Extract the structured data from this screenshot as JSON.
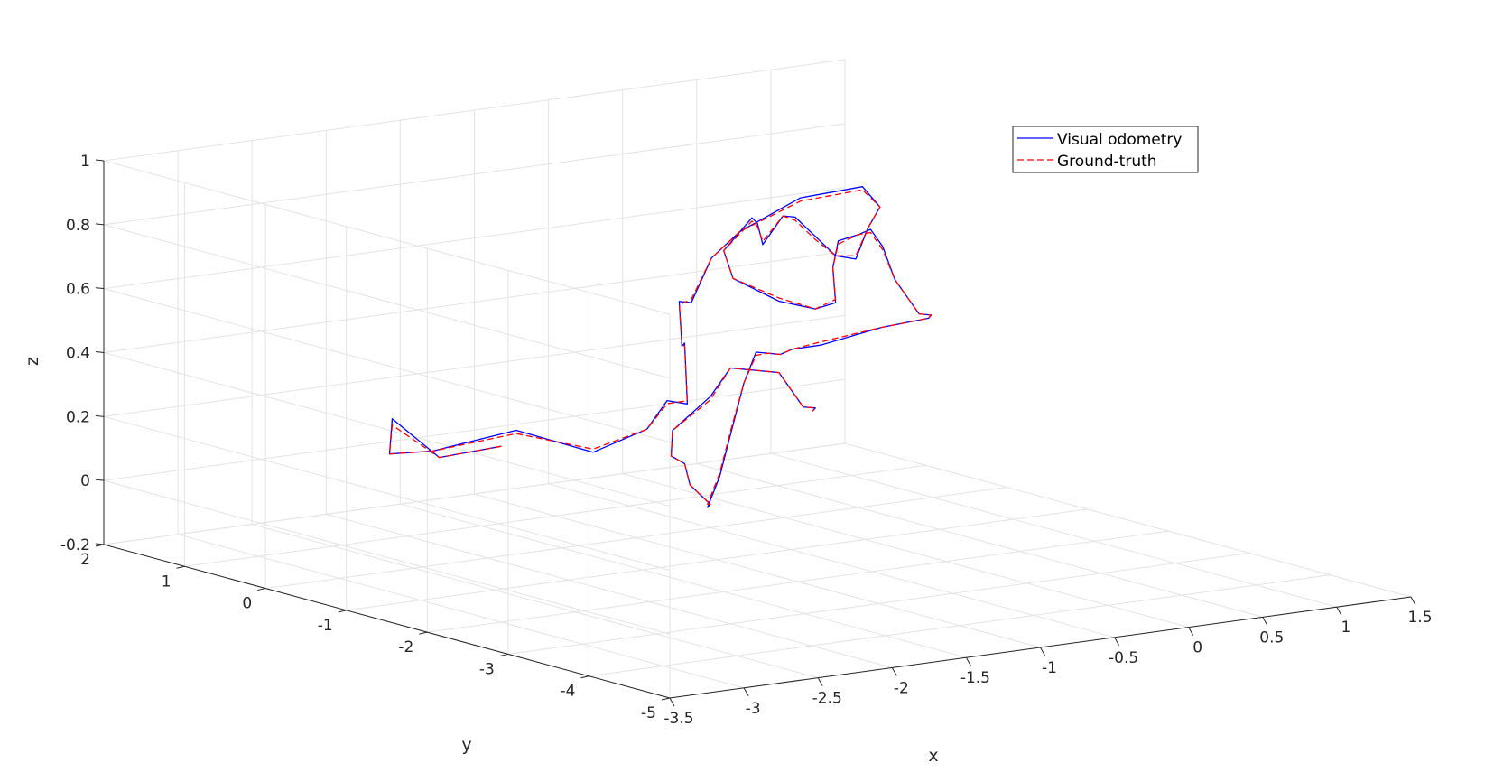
{
  "chart_data": {
    "type": "line",
    "projection": "3d",
    "title": "",
    "xlabel": "x",
    "ylabel": "y",
    "zlabel": "z",
    "xlim": [
      -3.5,
      1.5
    ],
    "ylim": [
      -5,
      2
    ],
    "zlim": [
      -0.2,
      1
    ],
    "xticks": [
      "-3.5",
      "-3",
      "-2.5",
      "-2",
      "-1.5",
      "-1",
      "-0.5",
      "0",
      "0.5",
      "1",
      "1.5"
    ],
    "yticks": [
      "-5",
      "-4",
      "-3",
      "-2",
      "-1",
      "0",
      "1",
      "2"
    ],
    "zticks": [
      "-0.2",
      "0",
      "0.2",
      "0.4",
      "0.6",
      "0.8",
      "1"
    ],
    "grid": true,
    "legend_position": "top-right",
    "series": [
      {
        "name": "Visual odometry",
        "color": "#0000ff",
        "style": "solid",
        "points": [
          [
            -3.0,
            -2.0,
            0.35
          ],
          [
            -3.2,
            -1.6,
            0.3
          ],
          [
            -3.3,
            -1.2,
            0.4
          ],
          [
            -3.1,
            -0.8,
            0.25
          ],
          [
            -2.7,
            -0.6,
            0.22
          ],
          [
            -2.3,
            -0.9,
            0.28
          ],
          [
            -2.0,
            -1.3,
            0.22
          ],
          [
            -1.8,
            -1.6,
            0.3
          ],
          [
            -1.5,
            -1.3,
            0.35
          ],
          [
            -1.2,
            -1.0,
            0.3
          ],
          [
            -1.0,
            -0.6,
            0.45
          ],
          [
            -0.8,
            -0.2,
            0.4
          ],
          [
            -0.6,
            0.2,
            0.5
          ],
          [
            -0.3,
            0.6,
            0.45
          ],
          [
            0.0,
            0.9,
            0.55
          ],
          [
            0.3,
            1.1,
            0.6
          ],
          [
            0.6,
            0.9,
            0.7
          ],
          [
            0.8,
            0.5,
            0.75
          ],
          [
            0.7,
            0.1,
            0.72
          ],
          [
            0.4,
            -0.3,
            0.7
          ],
          [
            0.1,
            -0.7,
            0.65
          ],
          [
            -0.2,
            -1.0,
            0.7
          ],
          [
            -0.5,
            -1.3,
            0.8
          ],
          [
            -0.8,
            -1.6,
            0.9
          ],
          [
            -1.1,
            -2.0,
            0.95
          ],
          [
            -1.4,
            -2.3,
            0.9
          ],
          [
            -1.6,
            -2.6,
            1.0
          ],
          [
            -1.8,
            -2.9,
            1.05
          ],
          [
            -2.1,
            -3.1,
            0.98
          ],
          [
            -2.2,
            -3.4,
            0.92
          ],
          [
            -2.0,
            -3.6,
            0.85
          ],
          [
            -1.7,
            -3.5,
            0.8
          ],
          [
            -1.4,
            -3.2,
            0.78
          ],
          [
            -1.2,
            -2.8,
            0.85
          ],
          [
            -1.0,
            -2.5,
            0.9
          ],
          [
            -0.7,
            -2.2,
            0.88
          ],
          [
            -0.4,
            -1.8,
            0.85
          ],
          [
            -0.1,
            -1.4,
            0.75
          ],
          [
            0.2,
            -1.0,
            0.6
          ],
          [
            0.5,
            -0.6,
            0.5
          ],
          [
            0.8,
            -0.2,
            0.4
          ],
          [
            1.1,
            0.2,
            0.35
          ],
          [
            1.3,
            0.6,
            0.3
          ],
          [
            1.2,
            1.0,
            0.25
          ],
          [
            0.9,
            1.2,
            0.2
          ],
          [
            0.6,
            1.0,
            0.22
          ],
          [
            0.3,
            0.6,
            0.25
          ],
          [
            0.0,
            0.2,
            0.3
          ],
          [
            -0.3,
            -0.2,
            0.35
          ],
          [
            -0.6,
            -0.6,
            0.3
          ],
          [
            -0.9,
            -1.0,
            0.2
          ],
          [
            -1.2,
            -1.4,
            0.1
          ],
          [
            -1.5,
            -1.8,
            0.05
          ],
          [
            -1.7,
            -2.2,
            0.1
          ],
          [
            -2.0,
            -2.5,
            0.2
          ],
          [
            -2.2,
            -2.8,
            0.3
          ],
          [
            -2.4,
            -3.0,
            0.35
          ],
          [
            -2.5,
            -3.2,
            0.45
          ],
          [
            -2.3,
            -3.3,
            0.55
          ],
          [
            -2.0,
            -3.0,
            0.6
          ],
          [
            -1.7,
            -2.6,
            0.55
          ],
          [
            -1.4,
            -2.2,
            0.5
          ],
          [
            -1.1,
            -1.8,
            0.45
          ],
          [
            -0.8,
            -1.4,
            0.4
          ],
          [
            -0.5,
            -1.0,
            0.3
          ],
          [
            -0.2,
            -0.6,
            0.2
          ],
          [
            0.1,
            -0.2,
            0.15
          ],
          [
            0.3,
            0.2,
            0.1
          ]
        ]
      },
      {
        "name": "Ground-truth",
        "color": "#ff0000",
        "style": "dashed",
        "points": [
          [
            -3.0,
            -2.0,
            0.35
          ],
          [
            -3.2,
            -1.6,
            0.3
          ],
          [
            -3.3,
            -1.2,
            0.38
          ],
          [
            -3.1,
            -0.8,
            0.25
          ],
          [
            -2.7,
            -0.6,
            0.22
          ],
          [
            -2.3,
            -0.9,
            0.27
          ],
          [
            -2.0,
            -1.3,
            0.23
          ],
          [
            -1.8,
            -1.6,
            0.3
          ],
          [
            -1.5,
            -1.3,
            0.34
          ],
          [
            -1.2,
            -1.0,
            0.31
          ],
          [
            -1.0,
            -0.6,
            0.44
          ],
          [
            -0.8,
            -0.2,
            0.41
          ],
          [
            -0.6,
            0.2,
            0.49
          ],
          [
            -0.3,
            0.6,
            0.46
          ],
          [
            0.0,
            0.9,
            0.55
          ],
          [
            0.3,
            1.1,
            0.6
          ],
          [
            0.6,
            0.9,
            0.69
          ],
          [
            0.8,
            0.5,
            0.74
          ],
          [
            0.7,
            0.1,
            0.72
          ],
          [
            0.4,
            -0.3,
            0.7
          ],
          [
            0.1,
            -0.7,
            0.66
          ],
          [
            -0.2,
            -1.0,
            0.7
          ],
          [
            -0.5,
            -1.3,
            0.79
          ],
          [
            -0.8,
            -1.6,
            0.89
          ],
          [
            -1.1,
            -2.0,
            0.95
          ],
          [
            -1.4,
            -2.3,
            0.91
          ],
          [
            -1.6,
            -2.6,
            0.99
          ],
          [
            -1.8,
            -2.9,
            1.04
          ],
          [
            -2.1,
            -3.1,
            0.98
          ],
          [
            -2.2,
            -3.4,
            0.92
          ],
          [
            -2.0,
            -3.6,
            0.86
          ],
          [
            -1.7,
            -3.5,
            0.8
          ],
          [
            -1.4,
            -3.2,
            0.79
          ],
          [
            -1.2,
            -2.8,
            0.85
          ],
          [
            -1.0,
            -2.5,
            0.89
          ],
          [
            -0.7,
            -2.2,
            0.88
          ],
          [
            -0.4,
            -1.8,
            0.84
          ],
          [
            -0.1,
            -1.4,
            0.74
          ],
          [
            0.2,
            -1.0,
            0.6
          ],
          [
            0.5,
            -0.6,
            0.5
          ],
          [
            0.8,
            -0.2,
            0.4
          ],
          [
            1.1,
            0.2,
            0.35
          ],
          [
            1.3,
            0.6,
            0.3
          ],
          [
            1.2,
            1.0,
            0.25
          ],
          [
            0.9,
            1.2,
            0.21
          ],
          [
            0.6,
            1.0,
            0.22
          ],
          [
            0.3,
            0.6,
            0.25
          ],
          [
            0.0,
            0.2,
            0.3
          ],
          [
            -0.3,
            -0.2,
            0.34
          ],
          [
            -0.6,
            -0.6,
            0.3
          ],
          [
            -0.9,
            -1.0,
            0.21
          ],
          [
            -1.2,
            -1.4,
            0.11
          ],
          [
            -1.5,
            -1.8,
            0.06
          ],
          [
            -1.7,
            -2.2,
            0.1
          ],
          [
            -2.0,
            -2.5,
            0.2
          ],
          [
            -2.2,
            -2.8,
            0.3
          ],
          [
            -2.4,
            -3.0,
            0.35
          ],
          [
            -2.5,
            -3.2,
            0.45
          ],
          [
            -2.3,
            -3.3,
            0.54
          ],
          [
            -2.0,
            -3.0,
            0.6
          ],
          [
            -1.7,
            -2.6,
            0.55
          ],
          [
            -1.4,
            -2.2,
            0.5
          ],
          [
            -1.1,
            -1.8,
            0.45
          ],
          [
            -0.8,
            -1.4,
            0.4
          ],
          [
            -0.5,
            -1.0,
            0.3
          ],
          [
            -0.2,
            -0.6,
            0.2
          ],
          [
            0.1,
            -0.2,
            0.15
          ],
          [
            0.3,
            0.2,
            0.1
          ]
        ]
      }
    ]
  }
}
